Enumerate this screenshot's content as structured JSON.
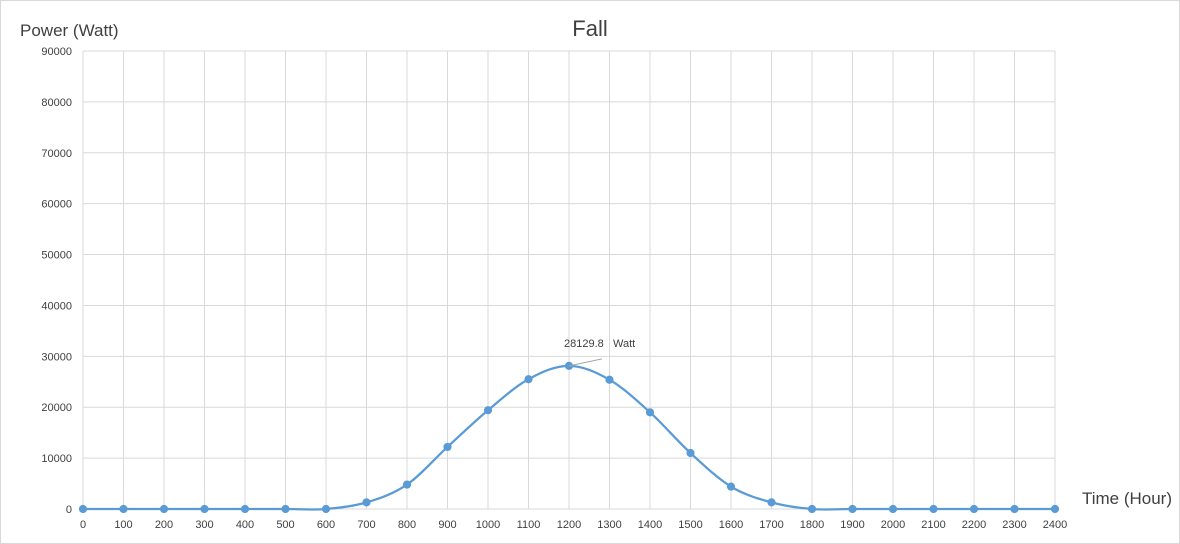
{
  "chart_data": {
    "type": "line",
    "title": "Fall",
    "ylabel": "Power (Watt)",
    "xlabel": "Time (Hour)",
    "xlim": [
      0,
      2400
    ],
    "ylim": [
      0,
      90000
    ],
    "x_ticks": [
      0,
      100,
      200,
      300,
      400,
      500,
      600,
      700,
      800,
      900,
      1000,
      1100,
      1200,
      1300,
      1400,
      1500,
      1600,
      1700,
      1800,
      1900,
      2000,
      2100,
      2200,
      2300,
      2400
    ],
    "y_ticks": [
      0,
      10000,
      20000,
      30000,
      40000,
      50000,
      60000,
      70000,
      80000,
      90000
    ],
    "grid": true,
    "line_color": "#5b9bd5",
    "series": [
      {
        "x": [
          0,
          100,
          200,
          300,
          400,
          500,
          600,
          700,
          800,
          900,
          1000,
          1100,
          1200,
          1300,
          1400,
          1500,
          1600,
          1700,
          1800,
          1900,
          2000,
          2100,
          2200,
          2300,
          2400
        ],
        "values": [
          0,
          0,
          0,
          0,
          0,
          0,
          0,
          1300,
          4800,
          12200,
          19400,
          25500,
          28129.8,
          25400,
          19000,
          11000,
          4400,
          1300,
          0,
          0,
          0,
          0,
          0,
          0,
          0
        ]
      }
    ],
    "annotations": [
      {
        "x": 1200,
        "y": 28129.8,
        "text": "28129.8",
        "unit": "Watt"
      }
    ]
  }
}
